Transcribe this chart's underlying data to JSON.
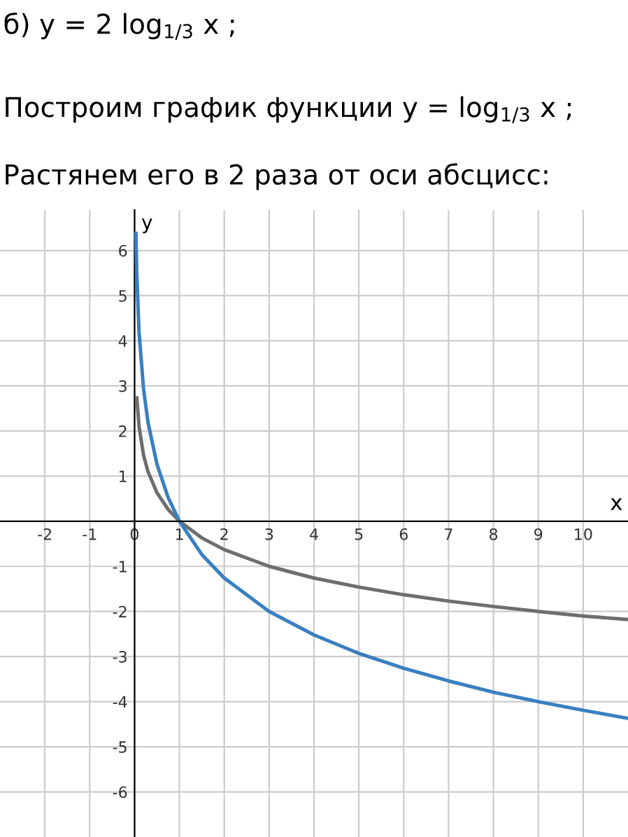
{
  "chart_data": {
    "type": "line",
    "title": "б) y = 2 log$_{1/3}$ x ;",
    "subtitle": "Построим график функции y = log$_{1/3}$ x ;",
    "annotations": [
      "Растянем его в 2 раза от оси абсцисс:"
    ],
    "xlabel": "x",
    "ylabel": "y",
    "series": [
      {
        "color": "#6e6e6e",
        "x": [
          0.05,
          0.1,
          0.2,
          0.3,
          0.5,
          0.75,
          1,
          1.5,
          2,
          3,
          4,
          5,
          6,
          7,
          8,
          9,
          10,
          11
        ],
        "values": [
          2.73,
          2.1,
          1.46,
          1.1,
          0.63,
          0.26,
          0,
          -0.37,
          -0.63,
          -1,
          -1.26,
          -1.46,
          -1.63,
          -1.77,
          -1.89,
          -2,
          -2.1,
          -2.18
        ]
      },
      {
        "color": "#3a7fc0",
        "x": [
          0.03,
          0.05,
          0.1,
          0.2,
          0.3,
          0.5,
          0.75,
          1,
          1.5,
          2,
          3,
          4,
          5,
          6,
          7,
          8,
          9,
          10,
          11
        ],
        "values": [
          6.38,
          5.45,
          4.19,
          2.93,
          2.19,
          1.26,
          0.52,
          0,
          -0.74,
          -1.26,
          -2,
          -2.52,
          -2.93,
          -3.26,
          -3.54,
          -3.79,
          -4,
          -4.19,
          -4.37
        ]
      }
    ],
    "xlim": [
      -3,
      11
    ],
    "ylim": [
      -7,
      6.9
    ],
    "xticks": [
      -2,
      -1,
      0,
      1,
      2,
      3,
      4,
      5,
      6,
      7,
      8,
      9,
      10
    ],
    "yticks": [
      -6,
      -5,
      -4,
      -3,
      -2,
      -1,
      1,
      2,
      3,
      4,
      5,
      6
    ],
    "grid": true,
    "marker": "none",
    "line_style": "solid"
  }
}
